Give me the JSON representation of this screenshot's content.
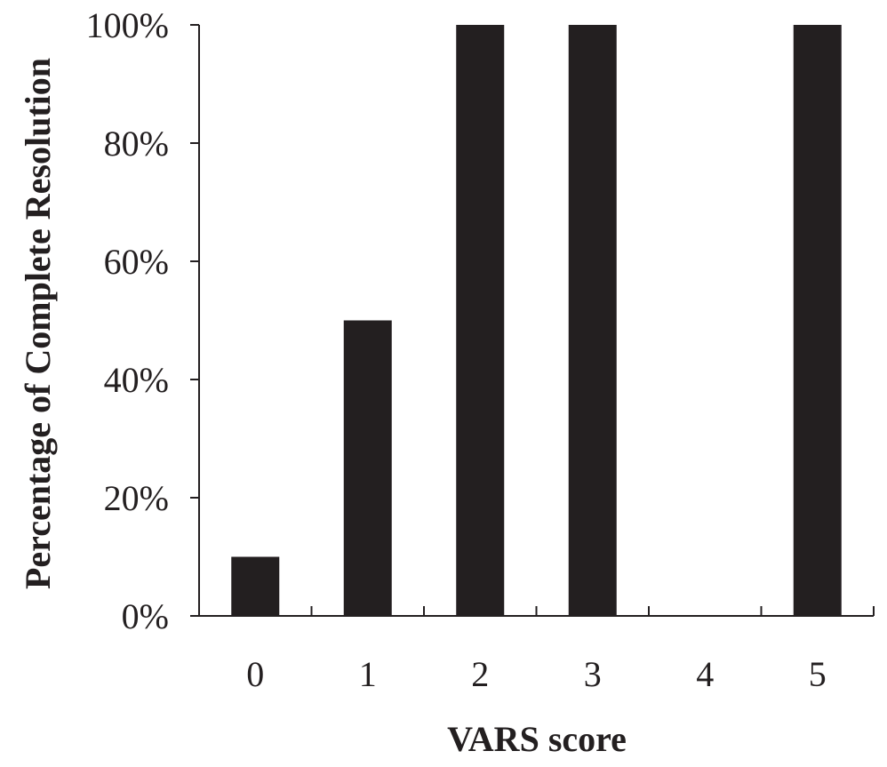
{
  "chart_data": {
    "type": "bar",
    "title": "",
    "xlabel": "VARS score",
    "ylabel": "Percentage of Complete Resolution",
    "categories": [
      "0",
      "1",
      "2",
      "3",
      "4",
      "5"
    ],
    "values": [
      10,
      50,
      100,
      100,
      0,
      100
    ],
    "ylim": [
      0,
      100
    ],
    "yticks": [
      0,
      20,
      40,
      60,
      80,
      100
    ],
    "ytick_labels": [
      "0%",
      "20%",
      "40%",
      "60%",
      "80%",
      "100%"
    ],
    "grid": false,
    "legend": "none",
    "bar_color": "#231f20"
  }
}
